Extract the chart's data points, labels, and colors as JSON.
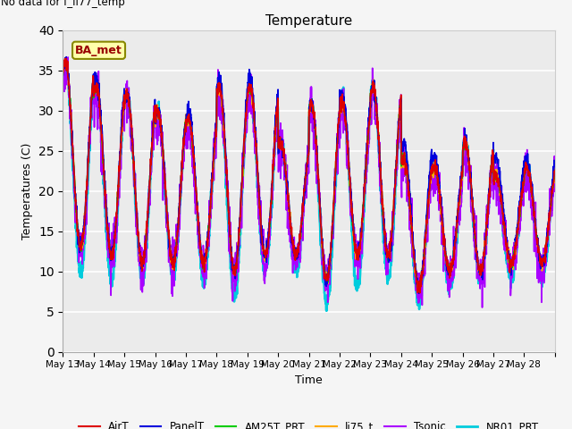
{
  "title": "Temperature",
  "ylabel": "Temperatures (C)",
  "xlabel": "Time",
  "no_data_text": "No data for f_li77_temp",
  "legend_box_text": "BA_met",
  "ylim": [
    0,
    40
  ],
  "yticks": [
    0,
    5,
    10,
    15,
    20,
    25,
    30,
    35,
    40
  ],
  "xtick_labels": [
    "May 13",
    "May 14",
    "May 15",
    "May 16",
    "May 17",
    "May 18",
    "May 19",
    "May 20",
    "May 21",
    "May 22",
    "May 23",
    "May 24",
    "May 25",
    "May 26",
    "May 27",
    "May 28"
  ],
  "series_names": [
    "AirT",
    "PanelT",
    "AM25T_PRT",
    "li75_t",
    "Tsonic",
    "NR01_PRT"
  ],
  "series_colors": [
    "#dd0000",
    "#0000dd",
    "#00cc00",
    "#ffaa00",
    "#aa00ff",
    "#00ccdd"
  ],
  "plot_bg": "#ebebeb",
  "fig_bg": "#f5f5f5",
  "grid_color": "#ffffff",
  "n_days": 16,
  "pts_per_day": 144,
  "base_temp_day": [
    13,
    12,
    11,
    11,
    11,
    10,
    12,
    12,
    9,
    12,
    12,
    8,
    10,
    10,
    11,
    11
  ],
  "peak_temp_day": [
    36,
    33,
    32,
    30,
    29,
    33,
    33,
    26,
    31,
    31,
    33,
    24,
    23,
    26,
    22,
    23
  ],
  "panel_base_day": [
    13,
    12,
    11,
    11,
    11,
    10,
    12,
    12,
    9,
    12,
    12,
    8,
    10,
    10,
    11,
    11
  ],
  "panel_peak_day": [
    36,
    34,
    32,
    30,
    30,
    34,
    34,
    26,
    31,
    32,
    33,
    26,
    24,
    26,
    24,
    24
  ],
  "nr01_base_day": [
    10,
    9,
    9,
    9,
    9,
    7,
    10,
    10,
    6,
    8,
    9,
    6,
    8,
    9,
    9,
    9
  ],
  "nr01_peak_day": [
    35,
    33,
    32,
    30,
    29,
    32,
    32,
    26,
    30,
    32,
    33,
    25,
    23,
    26,
    22,
    23
  ]
}
